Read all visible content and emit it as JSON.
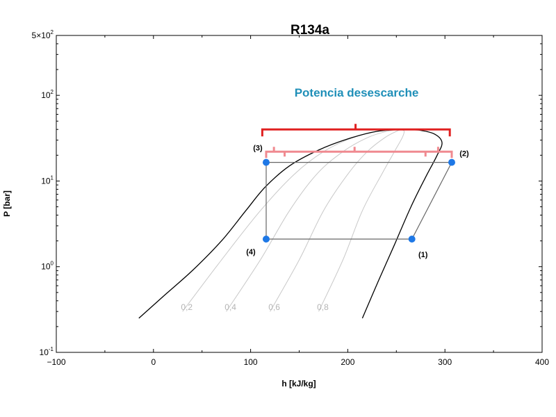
{
  "chart_data": {
    "type": "line",
    "title": "R134a",
    "xlabel": "h [kJ/kg]",
    "ylabel": "P [bar]",
    "xlim": [
      -100,
      400
    ],
    "ylim": [
      0.1,
      500
    ],
    "yscale": "log",
    "grid": false,
    "x_ticks": [
      {
        "value": -100,
        "label": "−100"
      },
      {
        "value": 0,
        "label": "0"
      },
      {
        "value": 100,
        "label": "100"
      },
      {
        "value": 200,
        "label": "200"
      },
      {
        "value": 300,
        "label": "300"
      },
      {
        "value": 400,
        "label": "400"
      }
    ],
    "y_ticks": [
      {
        "value": 0.1,
        "base": "10",
        "exp": "-1"
      },
      {
        "value": 1,
        "base": "10",
        "exp": "0"
      },
      {
        "value": 10,
        "base": "10",
        "exp": "1"
      },
      {
        "value": 100,
        "base": "10",
        "exp": "2"
      },
      {
        "value": 500,
        "base": "5×10",
        "exp": "2"
      }
    ],
    "saturation_dome": {
      "color": "#000000",
      "liquid": [
        [
          -15,
          0.25
        ],
        [
          10,
          0.45
        ],
        [
          40,
          0.9
        ],
        [
          70,
          2.0
        ],
        [
          95,
          4.5
        ],
        [
          115,
          8.5
        ],
        [
          140,
          15
        ],
        [
          170,
          23
        ],
        [
          200,
          31
        ],
        [
          230,
          38
        ],
        [
          255,
          40
        ]
      ],
      "vapor": [
        [
          215,
          0.25
        ],
        [
          232,
          0.7
        ],
        [
          248,
          1.8
        ],
        [
          265,
          5
        ],
        [
          280,
          11
        ],
        [
          292,
          20
        ],
        [
          297,
          28
        ],
        [
          290,
          35
        ],
        [
          275,
          39
        ],
        [
          255,
          40
        ]
      ]
    },
    "quality_lines": {
      "color": "#c8c8c8",
      "lines": [
        {
          "label": "0,2",
          "points": [
            [
              30,
              0.3
            ],
            [
              70,
              1.2
            ],
            [
              110,
              4.5
            ],
            [
              145,
              12
            ],
            [
              175,
              22
            ],
            [
              205,
              32
            ],
            [
              230,
              38
            ],
            [
              255,
              40
            ]
          ]
        },
        {
          "label": "0,4",
          "points": [
            [
              75,
              0.3
            ],
            [
              110,
              1.2
            ],
            [
              140,
              4.5
            ],
            [
              168,
              12
            ],
            [
              195,
              22
            ],
            [
              220,
              32
            ],
            [
              240,
              38
            ],
            [
              255,
              40
            ]
          ]
        },
        {
          "label": "0,6",
          "points": [
            [
              120,
              0.3
            ],
            [
              150,
              1.2
            ],
            [
              175,
              4.5
            ],
            [
              200,
              12
            ],
            [
              220,
              22
            ],
            [
              238,
              32
            ],
            [
              250,
              38
            ],
            [
              255,
              40
            ]
          ]
        },
        {
          "label": "0,8",
          "points": [
            [
              170,
              0.3
            ],
            [
              195,
              1.2
            ],
            [
              215,
              4.5
            ],
            [
              235,
              12
            ],
            [
              248,
              22
            ],
            [
              256,
              32
            ],
            [
              258,
              38
            ],
            [
              255,
              40
            ]
          ]
        }
      ]
    },
    "cycle": {
      "color": "#666666",
      "path": [
        [
          266,
          2.1
        ],
        [
          307,
          16.5
        ],
        [
          116,
          16.5
        ],
        [
          116,
          2.1
        ],
        [
          266,
          2.1
        ]
      ],
      "points": [
        {
          "label": "(1)",
          "h": 266,
          "p": 2.1
        },
        {
          "label": "(2)",
          "h": 307,
          "p": 16.5
        },
        {
          "label": "(3)",
          "h": 116,
          "p": 16.5
        },
        {
          "label": "(4)",
          "h": 116,
          "p": 2.1
        }
      ],
      "point_color": "#1e78e6"
    },
    "annotations": {
      "text": "Potencia desescarche",
      "text_color": "#1f8fb8",
      "big_bracket": {
        "h_start": 112,
        "h_end": 305,
        "h_mid": 208,
        "p": 40,
        "color": "#e02020"
      },
      "small_brackets": {
        "h_start": 116,
        "h_end": 307,
        "p": 22,
        "tick_h": [
          124,
          135,
          207,
          280,
          293
        ],
        "color": "#f08a90"
      }
    }
  }
}
